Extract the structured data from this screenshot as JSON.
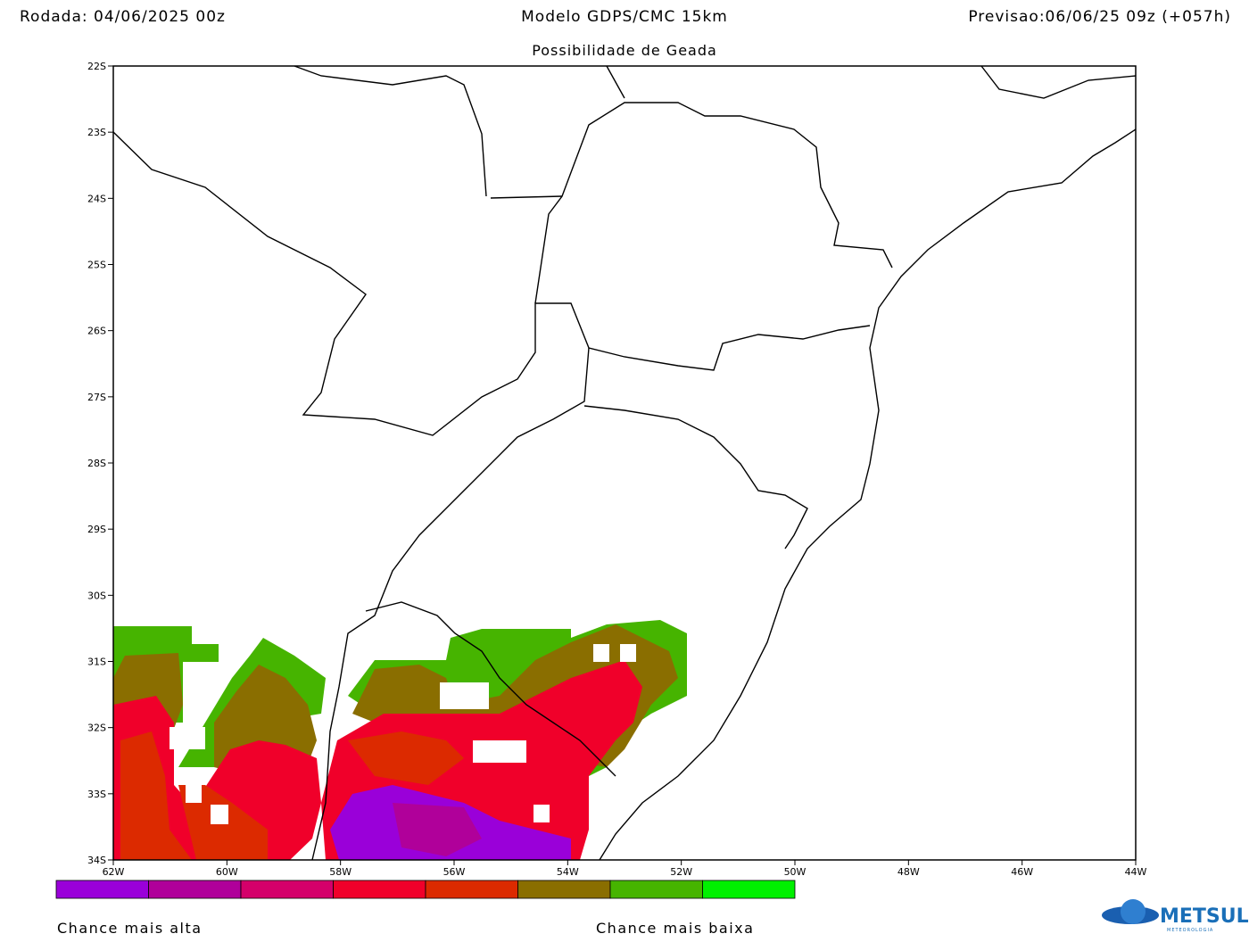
{
  "header": {
    "run": "Rodada: 04/06/2025 00z",
    "model": "Modelo GDPS/CMC 15km",
    "forecast": "Previsao:06/06/25 09z (+057h)",
    "subtitle": "Possibilidade de Geada"
  },
  "map": {
    "lat_labels": [
      "22S",
      "23S",
      "24S",
      "25S",
      "26S",
      "27S",
      "28S",
      "29S",
      "30S",
      "31S",
      "32S",
      "33S",
      "34S"
    ],
    "lon_labels": [
      "62W",
      "60W",
      "58W",
      "56W",
      "54W",
      "52W",
      "50W",
      "48W",
      "46W",
      "44W"
    ]
  },
  "colorbar": {
    "colors": [
      "#9a00d9",
      "#b0009a",
      "#d4006a",
      "#f0002a",
      "#dc2a00",
      "#8a6e00",
      "#46b400",
      "#00f000"
    ],
    "high_label": "Chance mais alta",
    "low_label": "Chance mais baixa"
  },
  "logo": {
    "name": "METSUL",
    "tagline": "METEOROLOGIA"
  }
}
